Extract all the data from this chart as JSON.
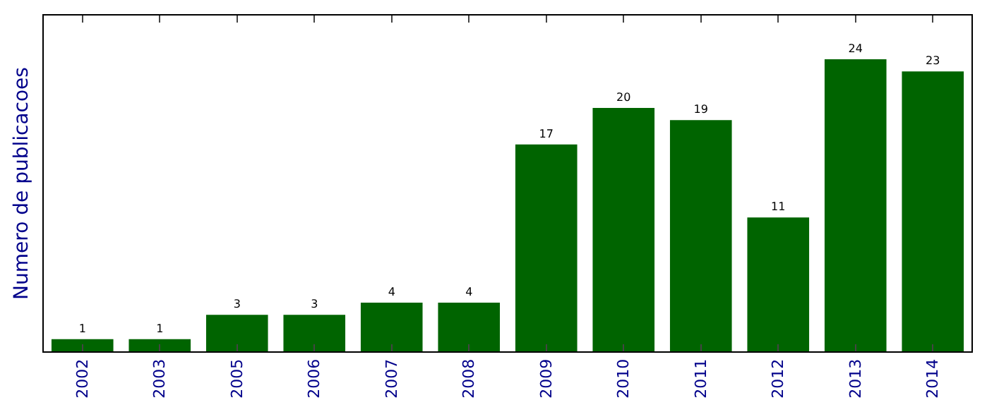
{
  "chart_data": {
    "type": "bar",
    "ylabel": "Numero de publicacoes",
    "categories": [
      "2002",
      "2003",
      "2005",
      "2006",
      "2007",
      "2008",
      "2009",
      "2010",
      "2011",
      "2012",
      "2013",
      "2014"
    ],
    "values": [
      1,
      1,
      3,
      3,
      4,
      4,
      17,
      20,
      19,
      11,
      24,
      23
    ],
    "color": "#006400",
    "data_labels": true,
    "tick_labels": "x"
  }
}
